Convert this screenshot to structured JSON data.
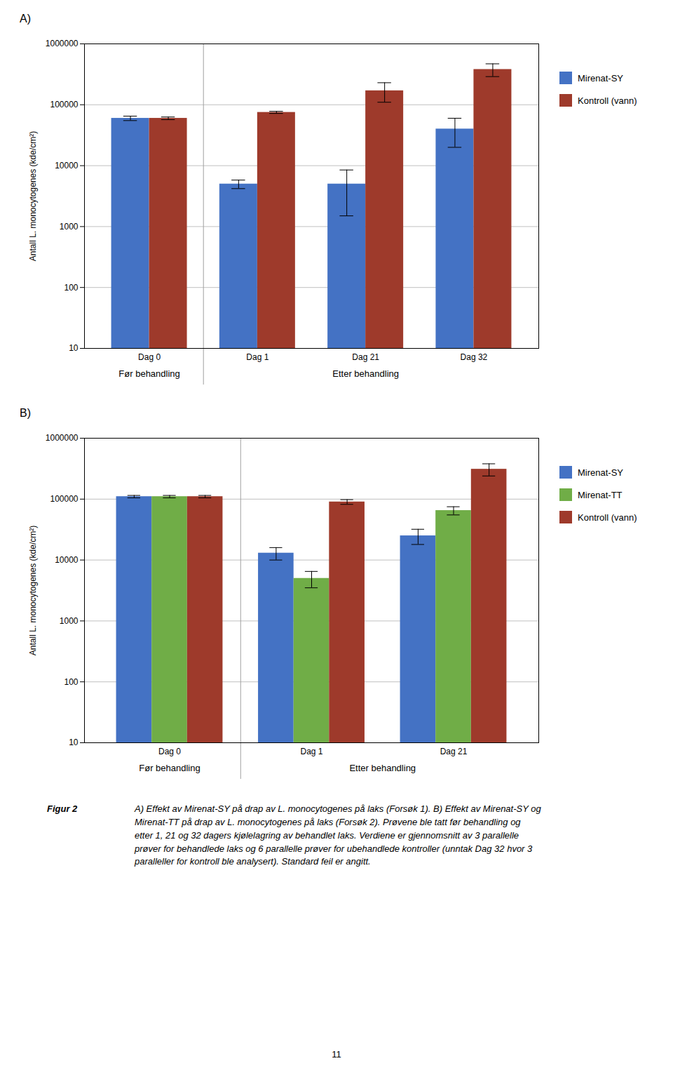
{
  "chart_data": [
    {
      "type": "bar",
      "title": "A)",
      "ylabel": "Antall L. monocytogenes (kde/cm²)",
      "categories": [
        "Dag 0",
        "Dag 1",
        "Dag 21",
        "Dag 32"
      ],
      "series": [
        {
          "name": "Mirenat-SY",
          "color": "#4472C4",
          "values": [
            60000,
            5000,
            5000,
            40000
          ],
          "errors": [
            5000,
            800,
            3500,
            20000
          ]
        },
        {
          "name": "Kontroll (vann)",
          "color": "#9E3A2B",
          "values": [
            60000,
            75000,
            170000,
            380000
          ],
          "errors": [
            3000,
            3000,
            60000,
            90000
          ]
        }
      ],
      "log": "y",
      "ylim": [
        10,
        1000000
      ],
      "yticks": [
        10,
        100,
        1000,
        10000,
        100000,
        1000000
      ],
      "grid": true,
      "legend": "right",
      "annotations": [
        {
          "text": "Før behandling",
          "categories": [
            "Dag 0"
          ]
        },
        {
          "text": "Etter behandling",
          "categories": [
            "Dag 1",
            "Dag 21",
            "Dag 32"
          ]
        }
      ]
    },
    {
      "type": "bar",
      "title": "B)",
      "ylabel": "Antall L. monocytogenes (kde/cm²)",
      "categories": [
        "Dag 0",
        "Dag 1",
        "Dag 21"
      ],
      "series": [
        {
          "name": "Mirenat-SY",
          "color": "#4472C4",
          "values": [
            110000,
            13000,
            25000
          ],
          "errors": [
            5000,
            3000,
            7000
          ]
        },
        {
          "name": "Mirenat-TT",
          "color": "#70AD47",
          "values": [
            110000,
            5000,
            65000
          ],
          "errors": [
            5000,
            1500,
            10000
          ]
        },
        {
          "name": "Kontroll (vann)",
          "color": "#9E3A2B",
          "values": [
            110000,
            90000,
            310000
          ],
          "errors": [
            5000,
            8000,
            70000
          ]
        }
      ],
      "log": "y",
      "ylim": [
        10,
        1000000
      ],
      "yticks": [
        10,
        100,
        1000,
        10000,
        100000,
        1000000
      ],
      "grid": true,
      "legend": "right",
      "annotations": [
        {
          "text": "Før behandling",
          "categories": [
            "Dag 0"
          ]
        },
        {
          "text": "Etter behandling",
          "categories": [
            "Dag 1",
            "Dag 21"
          ]
        }
      ]
    }
  ],
  "figure_label": "Figur 2",
  "caption": "A) Effekt av Mirenat-SY på drap av L. monocytogenes på laks (Forsøk 1). B) Effekt av Mirenat-SY og\nMirenat-TT på drap av L. monocytogenes på laks (Forsøk 2). Prøvene ble tatt før behandling og\netter 1, 21 og 32 dagers kjølelagring av behandlet laks. Verdiene er gjennomsnitt av 3 parallelle\nprøver for behandlede laks og 6 parallelle prøver for ubehandlede kontroller (unntak Dag 32 hvor 3\nparalleller for kontroll ble analysert). Standard feil er angitt.",
  "page_number": "11"
}
